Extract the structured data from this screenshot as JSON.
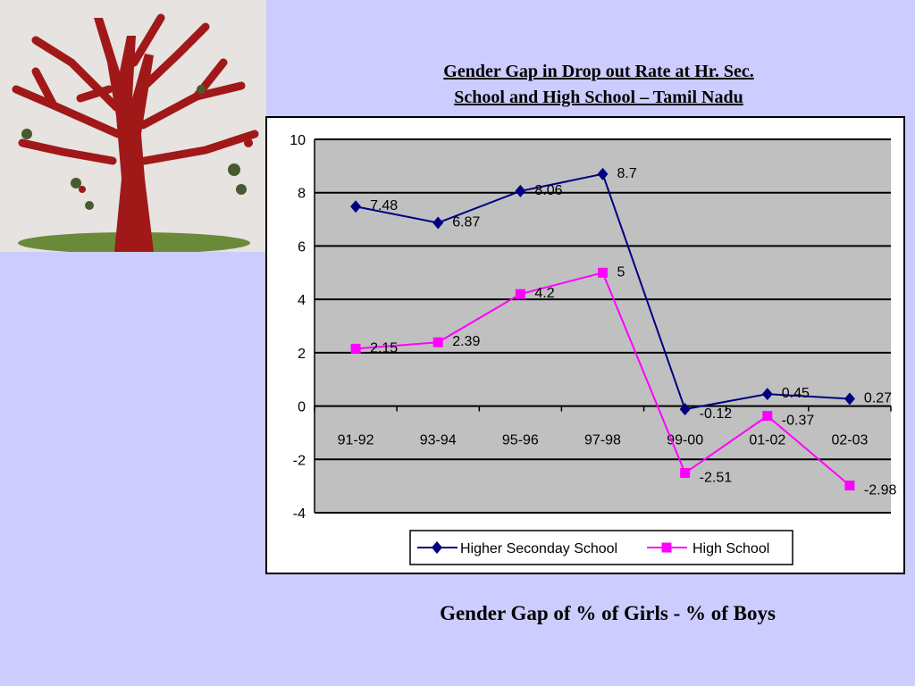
{
  "slide": {
    "title_line1": "Gender Gap in Drop out Rate at Hr. Sec.",
    "title_line2": "School and High School – Tamil Nadu",
    "caption": "Gender Gap of % of Girls - % of Boys",
    "image_icon": "tree-icon"
  },
  "chart_data": {
    "type": "line",
    "categories": [
      "91-92",
      "93-94",
      "95-96",
      "97-98",
      "99-00",
      "01-02",
      "02-03"
    ],
    "series": [
      {
        "name": "Higher Seconday School",
        "values": [
          7.48,
          6.87,
          8.06,
          8.7,
          -0.12,
          0.45,
          0.27
        ],
        "labels": [
          "7.48",
          "6.87",
          "8.06",
          "8.7",
          "-0.12",
          "0.45",
          "0.27"
        ],
        "color": "#000080",
        "marker": "diamond"
      },
      {
        "name": "High School",
        "values": [
          2.15,
          2.39,
          4.2,
          5,
          -2.51,
          -0.37,
          -2.98
        ],
        "labels": [
          "2.15",
          "2.39",
          "4.2",
          "5",
          "-2.51",
          "-0.37",
          "-2.98"
        ],
        "color": "#ff00ff",
        "marker": "square"
      }
    ],
    "ylim": [
      -4,
      10
    ],
    "yticks": [
      10,
      8,
      6,
      4,
      2,
      0,
      -2,
      -4
    ],
    "grid": true,
    "plot_background": "#c0c0c0",
    "legend_position": "bottom"
  }
}
